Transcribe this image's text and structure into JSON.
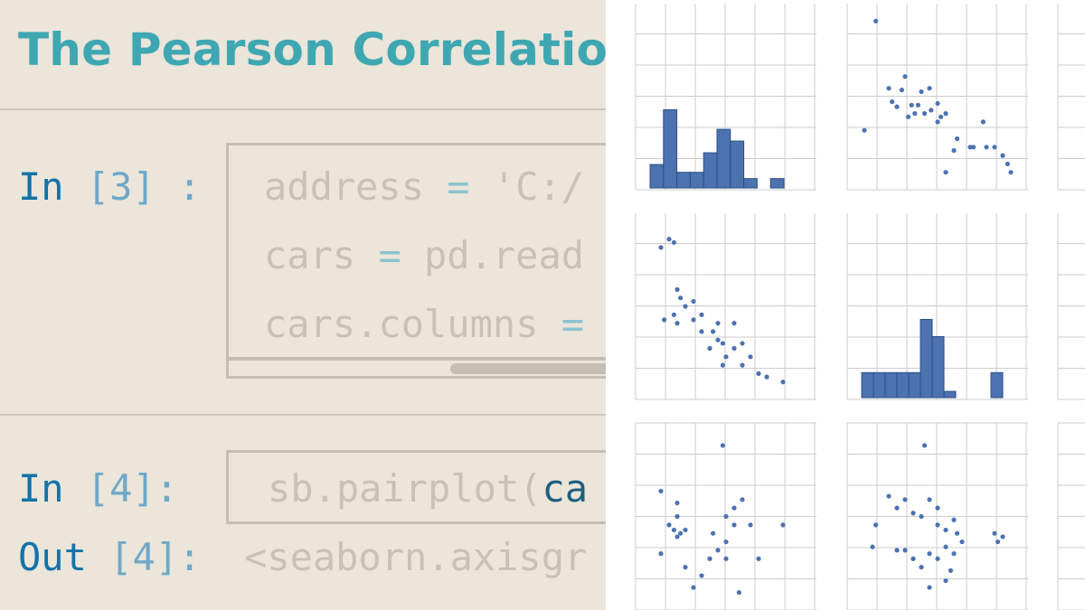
{
  "title": "The Pearson Correlation",
  "cells": {
    "in3": {
      "prompt_kw": "In",
      "prompt_num": "[3]",
      "prompt_colon": ":",
      "lines": [
        {
          "a": "address",
          "op": " = ",
          "b": "'C:/"
        },
        {
          "a": "cars",
          "op": " = ",
          "b": "pd.read"
        },
        {
          "a": "cars.columns",
          "op": " =",
          "b": ""
        }
      ]
    },
    "in4": {
      "prompt_kw": "In",
      "prompt_num": "[4]:",
      "code_a": "sb.pairplot(",
      "code_b": "ca"
    },
    "out4": {
      "prompt_kw": "Out",
      "prompt_num": "[4]:",
      "text": "<seaborn.axisgr"
    }
  },
  "colors": {
    "title": "#3fa7b1",
    "keyword": "#1273a8",
    "bar_fill": "#4c72b0",
    "point": "#4c72b0",
    "grid": "#cccccc"
  },
  "chart_data": {
    "type": "scatter",
    "title": "",
    "grid": true,
    "panels": [
      {
        "row": 0,
        "col": 0,
        "kind": "hist",
        "values": [
          0.3,
          1.0,
          0.2,
          0.2,
          0.45,
          0.75,
          0.6,
          0.12,
          0,
          0.12
        ]
      },
      {
        "row": 0,
        "col": 1,
        "kind": "scatter",
        "points": [
          [
            0.12,
            0.05
          ],
          [
            0.2,
            0.45
          ],
          [
            0.22,
            0.53
          ],
          [
            0.25,
            0.56
          ],
          [
            0.28,
            0.46
          ],
          [
            0.3,
            0.38
          ],
          [
            0.32,
            0.62
          ],
          [
            0.34,
            0.55
          ],
          [
            0.36,
            0.6
          ],
          [
            0.38,
            0.55
          ],
          [
            0.4,
            0.47
          ],
          [
            0.42,
            0.6
          ],
          [
            0.45,
            0.45
          ],
          [
            0.46,
            0.58
          ],
          [
            0.5,
            0.54
          ],
          [
            0.5,
            0.65
          ],
          [
            0.52,
            0.62
          ],
          [
            0.55,
            0.6
          ],
          [
            0.05,
            0.7
          ],
          [
            0.6,
            0.82
          ],
          [
            0.62,
            0.75
          ],
          [
            0.7,
            0.8
          ],
          [
            0.72,
            0.8
          ],
          [
            0.78,
            0.65
          ],
          [
            0.8,
            0.8
          ],
          [
            0.85,
            0.8
          ],
          [
            0.9,
            0.85
          ],
          [
            0.93,
            0.9
          ],
          [
            0.95,
            0.95
          ],
          [
            0.55,
            0.95
          ]
        ]
      },
      {
        "row": 1,
        "col": 0,
        "kind": "scatter",
        "points": [
          [
            0.15,
            0.1
          ],
          [
            0.18,
            0.12
          ],
          [
            0.1,
            0.15
          ],
          [
            0.2,
            0.4
          ],
          [
            0.22,
            0.45
          ],
          [
            0.25,
            0.5
          ],
          [
            0.18,
            0.55
          ],
          [
            0.12,
            0.58
          ],
          [
            0.2,
            0.6
          ],
          [
            0.3,
            0.47
          ],
          [
            0.35,
            0.55
          ],
          [
            0.42,
            0.65
          ],
          [
            0.45,
            0.7
          ],
          [
            0.48,
            0.72
          ],
          [
            0.5,
            0.8
          ],
          [
            0.55,
            0.75
          ],
          [
            0.6,
            0.85
          ],
          [
            0.65,
            0.8
          ],
          [
            0.7,
            0.9
          ],
          [
            0.75,
            0.92
          ],
          [
            0.85,
            0.95
          ],
          [
            0.55,
            0.6
          ],
          [
            0.48,
            0.85
          ],
          [
            0.6,
            0.72
          ],
          [
            0.35,
            0.65
          ],
          [
            0.4,
            0.75
          ],
          [
            0.45,
            0.6
          ],
          [
            0.3,
            0.58
          ]
        ]
      },
      {
        "row": 1,
        "col": 1,
        "kind": "hist",
        "values": [
          0.32,
          0.32,
          0.32,
          0.32,
          0.32,
          1.0,
          0.78,
          0.08,
          0,
          0,
          0,
          0.32
        ]
      },
      {
        "row": 2,
        "col": 0,
        "kind": "scatter",
        "points": [
          [
            0.48,
            0.08
          ],
          [
            0.1,
            0.35
          ],
          [
            0.2,
            0.42
          ],
          [
            0.15,
            0.55
          ],
          [
            0.18,
            0.58
          ],
          [
            0.2,
            0.62
          ],
          [
            0.22,
            0.6
          ],
          [
            0.25,
            0.58
          ],
          [
            0.2,
            0.5
          ],
          [
            0.1,
            0.72
          ],
          [
            0.25,
            0.8
          ],
          [
            0.3,
            0.92
          ],
          [
            0.35,
            0.85
          ],
          [
            0.4,
            0.75
          ],
          [
            0.45,
            0.7
          ],
          [
            0.5,
            0.65
          ],
          [
            0.5,
            0.5
          ],
          [
            0.55,
            0.45
          ],
          [
            0.6,
            0.4
          ],
          [
            0.55,
            0.55
          ],
          [
            0.65,
            0.55
          ],
          [
            0.7,
            0.75
          ],
          [
            0.85,
            0.55
          ],
          [
            0.58,
            0.95
          ],
          [
            0.5,
            0.75
          ],
          [
            0.42,
            0.6
          ]
        ]
      },
      {
        "row": 2,
        "col": 1,
        "kind": "scatter",
        "points": [
          [
            0.42,
            0.08
          ],
          [
            0.2,
            0.38
          ],
          [
            0.25,
            0.45
          ],
          [
            0.3,
            0.4
          ],
          [
            0.35,
            0.48
          ],
          [
            0.4,
            0.5
          ],
          [
            0.45,
            0.4
          ],
          [
            0.5,
            0.45
          ],
          [
            0.5,
            0.55
          ],
          [
            0.55,
            0.58
          ],
          [
            0.6,
            0.52
          ],
          [
            0.62,
            0.6
          ],
          [
            0.55,
            0.68
          ],
          [
            0.5,
            0.75
          ],
          [
            0.45,
            0.72
          ],
          [
            0.4,
            0.8
          ],
          [
            0.35,
            0.75
          ],
          [
            0.3,
            0.7
          ],
          [
            0.25,
            0.7
          ],
          [
            0.1,
            0.68
          ],
          [
            0.12,
            0.55
          ],
          [
            0.6,
            0.72
          ],
          [
            0.55,
            0.88
          ],
          [
            0.45,
            0.92
          ],
          [
            0.58,
            0.82
          ],
          [
            0.85,
            0.6
          ],
          [
            0.87,
            0.65
          ],
          [
            0.9,
            0.62
          ],
          [
            0.65,
            0.65
          ]
        ]
      }
    ]
  }
}
